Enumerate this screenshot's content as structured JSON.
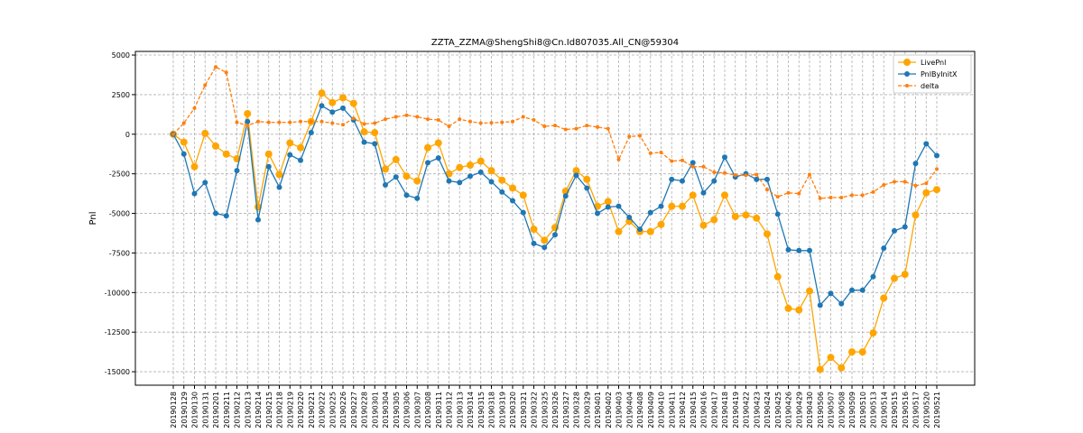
{
  "chart_data": {
    "type": "line",
    "title": "ZZTA_ZZMA@ShengShi8@Cn.Id807035.All_CN@59304",
    "y_label": "Pnl",
    "categories": [
      "20190128",
      "20190129",
      "20190130",
      "20190131",
      "20190201",
      "20190211",
      "20190212",
      "20190213",
      "20190214",
      "20190215",
      "20190218",
      "20190219",
      "20190220",
      "20190221",
      "20190222",
      "20190225",
      "20190226",
      "20190227",
      "20190228",
      "20190301",
      "20190304",
      "20190305",
      "20190306",
      "20190307",
      "20190308",
      "20190311",
      "20190312",
      "20190313",
      "20190314",
      "20190315",
      "20190318",
      "20190319",
      "20190320",
      "20190321",
      "20190322",
      "20190325",
      "20190326",
      "20190327",
      "20190328",
      "20190329",
      "20190401",
      "20190402",
      "20190403",
      "20190404",
      "20190408",
      "20190409",
      "20190410",
      "20190411",
      "20190412",
      "20190415",
      "20190416",
      "20190417",
      "20190418",
      "20190419",
      "20190422",
      "20190423",
      "20190424",
      "20190425",
      "20190426",
      "20190429",
      "20190430",
      "20190506",
      "20190507",
      "20190508",
      "20190509",
      "20190510",
      "20190513",
      "20190514",
      "20190515",
      "20190516",
      "20190517",
      "20190520",
      "20190521"
    ],
    "series": [
      {
        "name": "LivePnl",
        "color": "#ffa500",
        "marker_size": 4,
        "dashed": false,
        "values": [
          0,
          -500,
          -2050,
          50,
          -750,
          -1250,
          -1550,
          1300,
          -4600,
          -1250,
          -2550,
          -550,
          -850,
          800,
          2600,
          2000,
          2300,
          1950,
          150,
          100,
          -2200,
          -1600,
          -2650,
          -2950,
          -850,
          -550,
          -2500,
          -2100,
          -1950,
          -1700,
          -2300,
          -2900,
          -3400,
          -3850,
          -6000,
          -6700,
          -5900,
          -3600,
          -2300,
          -2850,
          -4550,
          -4250,
          -6150,
          -5500,
          -6150,
          -6150,
          -5700,
          -4550,
          -4550,
          -3850,
          -5750,
          -5400,
          -3850,
          -5200,
          -5100,
          -5300,
          -6300,
          -9000,
          -11000,
          -11100,
          -9900,
          -14850,
          -14100,
          -14750,
          -13750,
          -13750,
          -12550,
          -10350,
          -9100,
          -8850,
          -5100,
          -3700,
          -3500
        ]
      },
      {
        "name": "PnlByInitX",
        "color": "#1f77b4",
        "marker_size": 3,
        "dashed": false,
        "values": [
          0,
          -1250,
          -3750,
          -3050,
          -5000,
          -5150,
          -2300,
          800,
          -5400,
          -2050,
          -3350,
          -1300,
          -1650,
          100,
          1800,
          1400,
          1650,
          900,
          -500,
          -600,
          -3200,
          -2700,
          -3850,
          -4050,
          -1800,
          -1500,
          -2950,
          -3050,
          -2650,
          -2400,
          -3000,
          -3650,
          -4200,
          -4950,
          -6900,
          -7150,
          -6350,
          -3900,
          -2600,
          -3400,
          -5000,
          -4600,
          -4550,
          -5250,
          -6000,
          -4950,
          -4550,
          -2850,
          -2950,
          -1800,
          -3700,
          -2950,
          -1450,
          -2700,
          -2500,
          -2850,
          -2850,
          -5050,
          -7300,
          -7350,
          -7350,
          -10800,
          -10050,
          -10700,
          -9850,
          -9850,
          -9000,
          -7200,
          -6100,
          -5850,
          -1850,
          -600,
          -1350
        ]
      },
      {
        "name": "delta",
        "color": "#ff7f0e",
        "marker_size": 2,
        "dashed": true,
        "values": [
          0,
          700,
          1650,
          3100,
          4250,
          3900,
          750,
          550,
          800,
          750,
          750,
          750,
          800,
          800,
          800,
          700,
          600,
          1000,
          650,
          700,
          950,
          1100,
          1200,
          1100,
          950,
          900,
          500,
          950,
          800,
          700,
          720,
          750,
          800,
          1100,
          900,
          500,
          550,
          300,
          350,
          550,
          450,
          350,
          -1600,
          -150,
          -100,
          -1200,
          -1150,
          -1700,
          -1650,
          -2050,
          -2050,
          -2400,
          -2450,
          -2580,
          -2600,
          -2550,
          -3500,
          -3950,
          -3700,
          -3750,
          -2550,
          -4050,
          -4000,
          -4000,
          -3850,
          -3850,
          -3650,
          -3200,
          -3000,
          -3000,
          -3250,
          -3100,
          -2200
        ]
      }
    ],
    "ylim": [
      -15850,
      5230
    ],
    "yticks": [
      -15000,
      -12500,
      -10000,
      -7500,
      -5000,
      -2500,
      0,
      2500,
      5000
    ],
    "grid": true,
    "legend": "upper right"
  }
}
